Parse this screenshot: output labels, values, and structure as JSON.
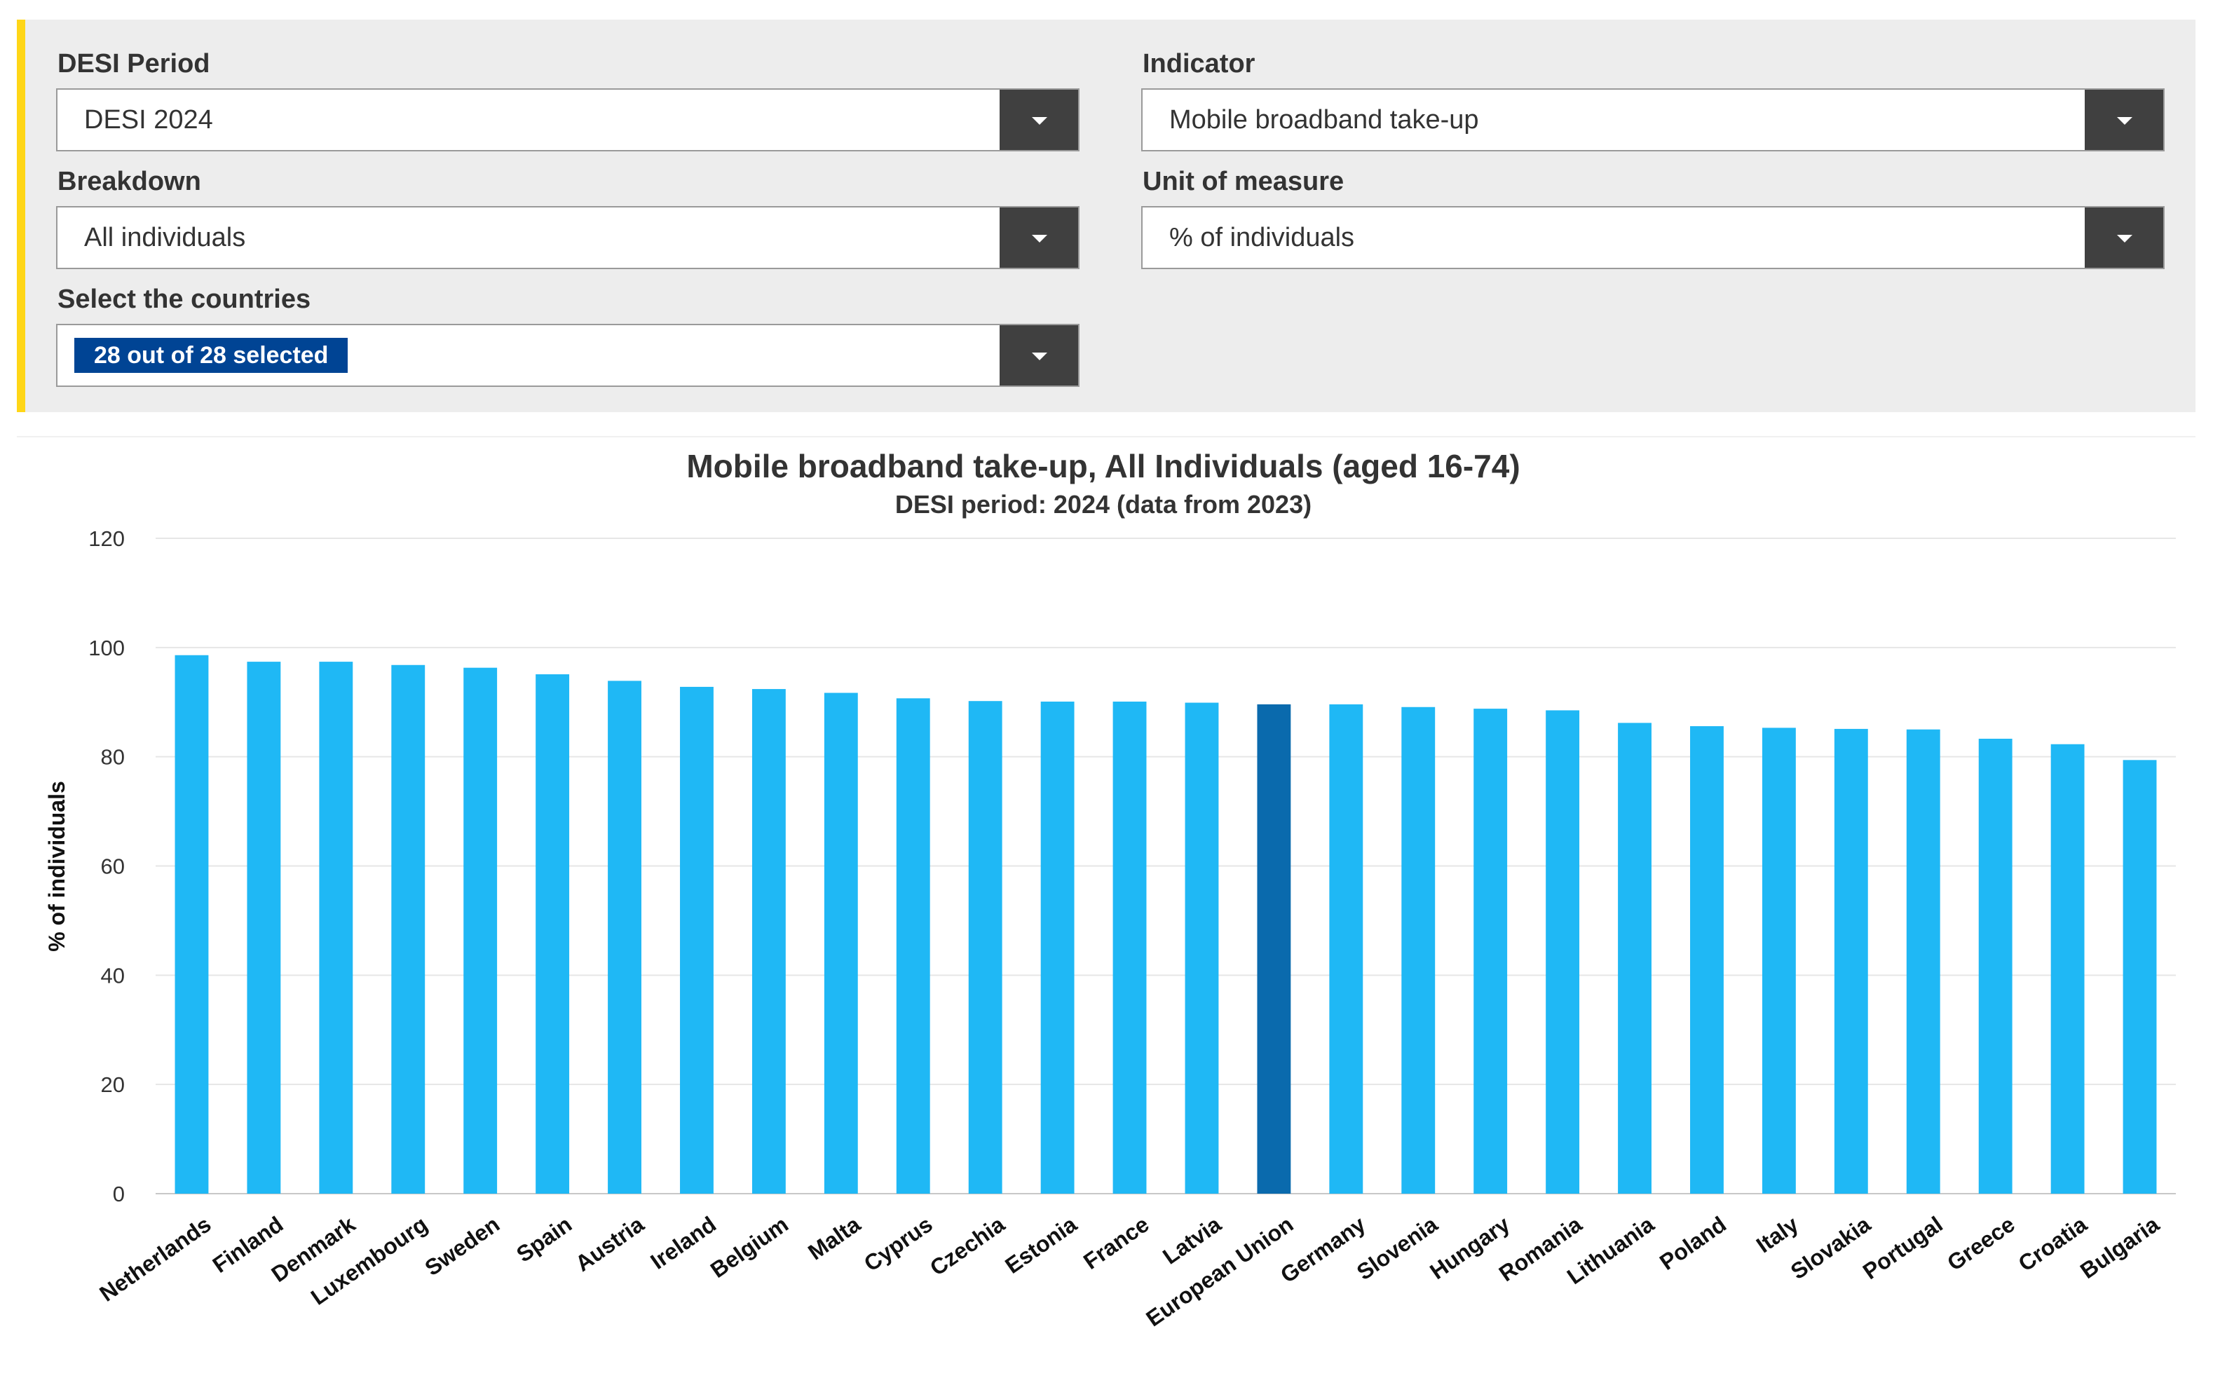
{
  "filters": {
    "desi_period": {
      "label": "DESI Period",
      "value": "DESI 2024"
    },
    "indicator": {
      "label": "Indicator",
      "value": "Mobile broadband take-up"
    },
    "breakdown": {
      "label": "Breakdown",
      "value": "All individuals"
    },
    "unit": {
      "label": "Unit of measure",
      "value": "% of individuals"
    },
    "countries": {
      "label": "Select the countries",
      "value": "28 out of 28 selected"
    }
  },
  "colors": {
    "bar": "#1fb8f5",
    "highlight_bar": "#0a6aad",
    "accent": "#ffd617",
    "badge": "#004494",
    "dropdown_button": "#404040"
  },
  "chart_data": {
    "type": "bar",
    "title": "Mobile broadband take-up, All Individuals (aged 16-74)",
    "subtitle": "DESI period: 2024 (data from 2023)",
    "ylabel": "% of individuals",
    "xlabel": "",
    "ylim": [
      0,
      120
    ],
    "yticks": [
      0,
      20,
      40,
      60,
      80,
      100,
      120
    ],
    "grid": true,
    "highlight": "European Union",
    "categories": [
      "Netherlands",
      "Finland",
      "Denmark",
      "Luxembourg",
      "Sweden",
      "Spain",
      "Austria",
      "Ireland",
      "Belgium",
      "Malta",
      "Cyprus",
      "Czechia",
      "Estonia",
      "France",
      "Latvia",
      "European Union",
      "Germany",
      "Slovenia",
      "Hungary",
      "Romania",
      "Lithuania",
      "Poland",
      "Italy",
      "Slovakia",
      "Portugal",
      "Greece",
      "Croatia",
      "Bulgaria"
    ],
    "values": [
      98.6,
      97.4,
      97.4,
      96.8,
      96.3,
      95.1,
      93.9,
      92.8,
      92.4,
      91.7,
      90.7,
      90.2,
      90.1,
      90.1,
      89.9,
      89.6,
      89.6,
      89.1,
      88.8,
      88.5,
      86.2,
      85.6,
      85.3,
      85.1,
      85.0,
      83.3,
      82.3,
      79.4
    ]
  }
}
